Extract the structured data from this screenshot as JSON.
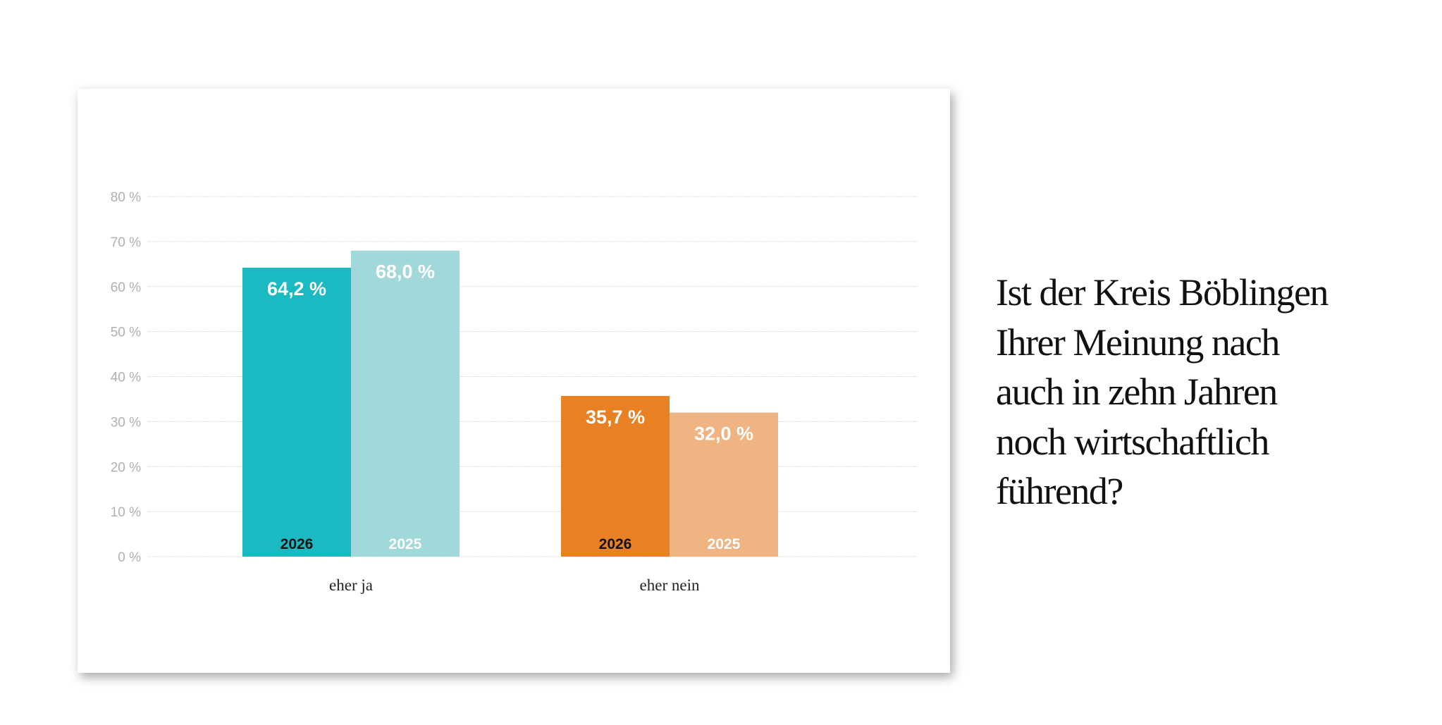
{
  "title_lines": [
    "Ist der Kreis Böblingen",
    "Ihrer Meinung nach",
    "auch in zehn Jahren",
    "noch wirtschaftlich",
    "führend?"
  ],
  "chart_data": {
    "type": "bar",
    "title": "Ist der Kreis Böblingen Ihrer Meinung nach auch in zehn Jahren noch wirtschaftlich führend?",
    "categories": [
      "eher ja",
      "eher nein"
    ],
    "series": [
      {
        "name": "2026",
        "values": [
          64.2,
          35.7
        ],
        "labels": [
          "64,2 %",
          "35,7 %"
        ]
      },
      {
        "name": "2025",
        "values": [
          68.0,
          32.0
        ],
        "labels": [
          "68,0 %",
          "32,0 %"
        ]
      }
    ],
    "colors": [
      [
        "#1bbac2",
        "#a1d9db"
      ],
      [
        "#e88124",
        "#f0b483"
      ]
    ],
    "year_label_colors": {
      "2026": "#111111",
      "2025": "#ffffff"
    },
    "yticks": [
      0,
      10,
      20,
      30,
      40,
      50,
      60,
      70,
      80
    ],
    "ytick_labels": [
      "0 %",
      "10 %",
      "20 %",
      "30 %",
      "40 %",
      "50 %",
      "60 %",
      "70 %",
      "80 %"
    ],
    "ylim": [
      0,
      80
    ],
    "xlabel": "",
    "ylabel": "",
    "grid": true,
    "legend": "none"
  }
}
